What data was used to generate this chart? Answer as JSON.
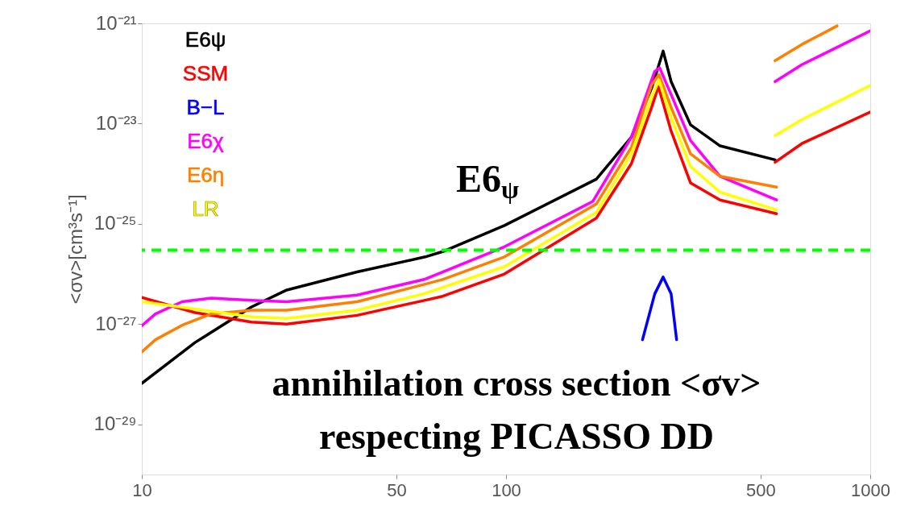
{
  "chart_data": {
    "type": "line",
    "ylabel": "<σv>[cm³s⁻¹]",
    "log": "xy",
    "grid": false,
    "legend": "top left",
    "xlim": [
      10,
      1000
    ],
    "xticks": [
      10,
      50,
      100,
      500,
      1000
    ],
    "ylim": [
      1e-30,
      1e-21
    ],
    "yticks": [
      {
        "value": 1e-21,
        "label": "10⁻²¹"
      },
      {
        "value": 1e-23,
        "label": "10⁻²³"
      },
      {
        "value": 1e-25,
        "label": "10⁻²⁵"
      },
      {
        "value": 1e-27,
        "label": "10⁻²⁷"
      },
      {
        "value": 1e-29,
        "label": "10⁻²⁹"
      }
    ],
    "series": [
      {
        "name": "E6ψ",
        "color": "#000000",
        "x": [
          10,
          14,
          20,
          25,
          39,
          60,
          67,
          99,
          177,
          221,
          251,
          270,
          284,
          321,
          387,
          548
        ],
        "values": [
          6.6e-29,
          4.3e-28,
          2.2e-27,
          4.8e-27,
          1.1e-26,
          2.2e-26,
          2.8e-26,
          9.3e-26,
          7.8e-25,
          5.4e-24,
          5.1e-23,
          2.8e-22,
          6.9e-23,
          9.5e-24,
          3.6e-24,
          1.9e-24
        ]
      },
      {
        "name": "SSM",
        "color": "#ff0000",
        "x": [
          10,
          14,
          20,
          25,
          39,
          60,
          67,
          99,
          177,
          221,
          251,
          262,
          284,
          321,
          387,
          553,
          550,
          548,
          649,
          1000
        ],
        "values": [
          3.4e-27,
          1.7e-27,
          1.1e-27,
          1e-27,
          1.5e-27,
          3e-27,
          3.6e-27,
          1e-26,
          1.3e-25,
          1.6e-24,
          2.1e-23,
          5.5e-23,
          7.1e-24,
          6.6e-25,
          3e-25,
          1.6e-25,
          null,
          1.7e-24,
          4e-24,
          1.7e-23
        ]
      },
      {
        "name": "B−L",
        "color": "#0000ff",
        "x": [
          237,
          256,
          270,
          284,
          294
        ],
        "values": [
          4.9e-28,
          4e-27,
          8.7e-27,
          4e-27,
          4.9e-28
        ]
      },
      {
        "name": "E6χ",
        "color": "#ff00ff",
        "x": [
          10,
          10.9,
          12.9,
          15.5,
          20,
          25,
          39,
          60,
          67,
          99,
          173,
          221,
          256,
          264,
          284,
          321,
          387,
          553,
          550,
          548,
          649,
          1000
        ],
        "values": [
          9.3e-28,
          1.6e-27,
          2.8e-27,
          3.3e-27,
          3e-27,
          2.8e-27,
          3.8e-27,
          7.9e-27,
          1.1e-26,
          3.5e-26,
          2.8e-25,
          5.4e-24,
          1.1e-22,
          1.3e-22,
          3.8e-23,
          4.6e-24,
          8.9e-25,
          3e-25,
          null,
          6.9e-23,
          1.5e-22,
          7.1e-22
        ]
      },
      {
        "name": "E6η",
        "color": "#ff8000",
        "x": [
          10,
          10.9,
          12.9,
          15.5,
          20,
          25,
          39,
          60,
          67,
          99,
          177,
          221,
          251,
          263,
          284,
          321,
          387,
          553,
          550,
          548,
          649,
          811
        ],
        "values": [
          2.8e-28,
          4.9e-28,
          9.5e-28,
          1.6e-27,
          1.9e-27,
          1.9e-27,
          2.8e-27,
          6.3e-27,
          7.8e-27,
          2.2e-26,
          2.5e-25,
          3.4e-24,
          5.9e-23,
          9.5e-23,
          2.1e-23,
          2.5e-24,
          8.9e-25,
          5.4e-25,
          null,
          1.8e-22,
          3.8e-22,
          8.9e-22
        ]
      },
      {
        "name": "LR",
        "color": "#ffff00",
        "x": [
          10,
          14,
          20,
          25,
          39,
          60,
          67,
          99,
          177,
          221,
          251,
          263,
          284,
          321,
          387,
          553,
          550,
          548,
          649,
          1000
        ],
        "values": [
          2.8e-27,
          2e-27,
          1.4e-27,
          1.3e-27,
          1.9e-27,
          4.1e-27,
          5.4e-27,
          1.4e-26,
          1.7e-25,
          2.5e-24,
          3.3e-23,
          7.4e-23,
          1.3e-23,
          1.4e-24,
          4.3e-25,
          1.9e-25,
          null,
          5.8e-24,
          1.2e-23,
          5.8e-23
        ]
      }
    ],
    "ref_lines": [
      {
        "axis": "y",
        "value": 3e-26,
        "color": "#00ff00",
        "line_style": "dashed"
      }
    ],
    "annotations": [
      "annihilation cross section <σv>\nrespecting PICASSO DD",
      "E6$_{ψ}$"
    ]
  }
}
